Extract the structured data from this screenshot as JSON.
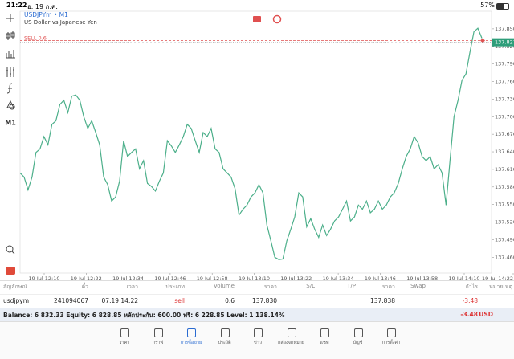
{
  "status_bar": {
    "time": "21:22",
    "date": "อ. 19 ก.ค.",
    "battery": "57%"
  },
  "toolbar": {
    "timeframe": "M1"
  },
  "chart_data": {
    "type": "line",
    "symbol": "USDJPYm • M1",
    "description": "US Dollar vs Japanese Yen",
    "x_labels": [
      "19 Jul 12:10",
      "19 Jul 12:22",
      "19 Jul 12:34",
      "19 Jul 12:46",
      "19 Jul 12:58",
      "19 Jul 13:10",
      "19 Jul 13:22",
      "19 Jul 13:34",
      "19 Jul 13:46",
      "19 Jul 13:58",
      "19 Jul 14:10",
      "19 Jul 14:22"
    ],
    "values": [
      137.604,
      137.597,
      137.575,
      137.597,
      137.639,
      137.645,
      137.666,
      137.652,
      137.687,
      137.693,
      137.721,
      137.728,
      137.707,
      137.735,
      137.737,
      137.728,
      137.7,
      137.68,
      137.693,
      137.673,
      137.652,
      137.597,
      137.584,
      137.556,
      137.563,
      137.59,
      137.659,
      137.632,
      137.639,
      137.645,
      137.611,
      137.625,
      137.586,
      137.581,
      137.573,
      137.59,
      137.604,
      137.659,
      137.65,
      137.639,
      137.652,
      137.666,
      137.687,
      137.68,
      137.659,
      137.639,
      137.673,
      137.666,
      137.68,
      137.645,
      137.639,
      137.611,
      137.604,
      137.597,
      137.577,
      137.532,
      137.542,
      137.549,
      137.563,
      137.57,
      137.584,
      137.57,
      137.515,
      137.488,
      137.46,
      137.456,
      137.457,
      137.488,
      137.508,
      137.529,
      137.57,
      137.563,
      137.512,
      137.526,
      137.508,
      137.494,
      137.515,
      137.497,
      137.508,
      137.522,
      137.529,
      137.542,
      137.556,
      137.522,
      137.529,
      137.549,
      137.542,
      137.556,
      137.536,
      137.542,
      137.556,
      137.542,
      137.549,
      137.563,
      137.57,
      137.586,
      137.611,
      137.632,
      137.645,
      137.666,
      137.655,
      137.632,
      137.625,
      137.632,
      137.611,
      137.618,
      137.604,
      137.549,
      137.625,
      137.7,
      137.728,
      137.762,
      137.773,
      137.81,
      137.845,
      137.851,
      137.834
    ],
    "color": "#4caf8a",
    "ylim": [
      137.433,
      137.88
    ],
    "yticks": [
      {
        "value": 137.85,
        "label": "137.850"
      },
      {
        "value": 137.82,
        "label": "137.820"
      },
      {
        "value": 137.79,
        "label": "137.790"
      },
      {
        "value": 137.76,
        "label": "137.760"
      },
      {
        "value": 137.73,
        "label": "137.730"
      },
      {
        "value": 137.7,
        "label": "137.700"
      },
      {
        "value": 137.67,
        "label": "137.670"
      },
      {
        "value": 137.64,
        "label": "137.640"
      },
      {
        "value": 137.61,
        "label": "137.610"
      },
      {
        "value": 137.58,
        "label": "137.580"
      },
      {
        "value": 137.55,
        "label": "137.550"
      },
      {
        "value": 137.52,
        "label": "137.520"
      },
      {
        "value": 137.49,
        "label": "137.490"
      },
      {
        "value": 137.46,
        "label": "137.460"
      }
    ],
    "current_price": {
      "value": 137.827,
      "label": "137.827"
    },
    "order_line": {
      "label": "SELL 0.6",
      "value": 137.83
    }
  },
  "table": {
    "headers": [
      "สัญลักษณ์",
      "ตั๋ว",
      "เวลา",
      "ประเภท",
      "Volume",
      "ราคา",
      "S/L",
      "T/P",
      "ราคา",
      "Swap",
      "กำไร",
      "หมายเหตุ"
    ],
    "rows": [
      {
        "symbol": "usdjpym",
        "ticket": "241094067",
        "time": "07.19 14:22",
        "type": "sell",
        "volume": "0.6",
        "price": "137.830",
        "current": "137.838",
        "profit": "-3.48"
      }
    ]
  },
  "balance": {
    "text": "Balance: 6 832.33 Equity: 6 828.85 หลักประกัน: 600.00 ฟรี: 6 228.85 Level: 1 138.14%",
    "profit": "-3.48",
    "currency": "USD"
  },
  "tabs": [
    "ราคา",
    "กราฟ",
    "การซื้อขาย",
    "ประวัติ",
    "ข่าว",
    "กล่องจดหมาย",
    "แชท",
    "บัญชี",
    "การตั้งค่า"
  ],
  "active_tab": 2
}
